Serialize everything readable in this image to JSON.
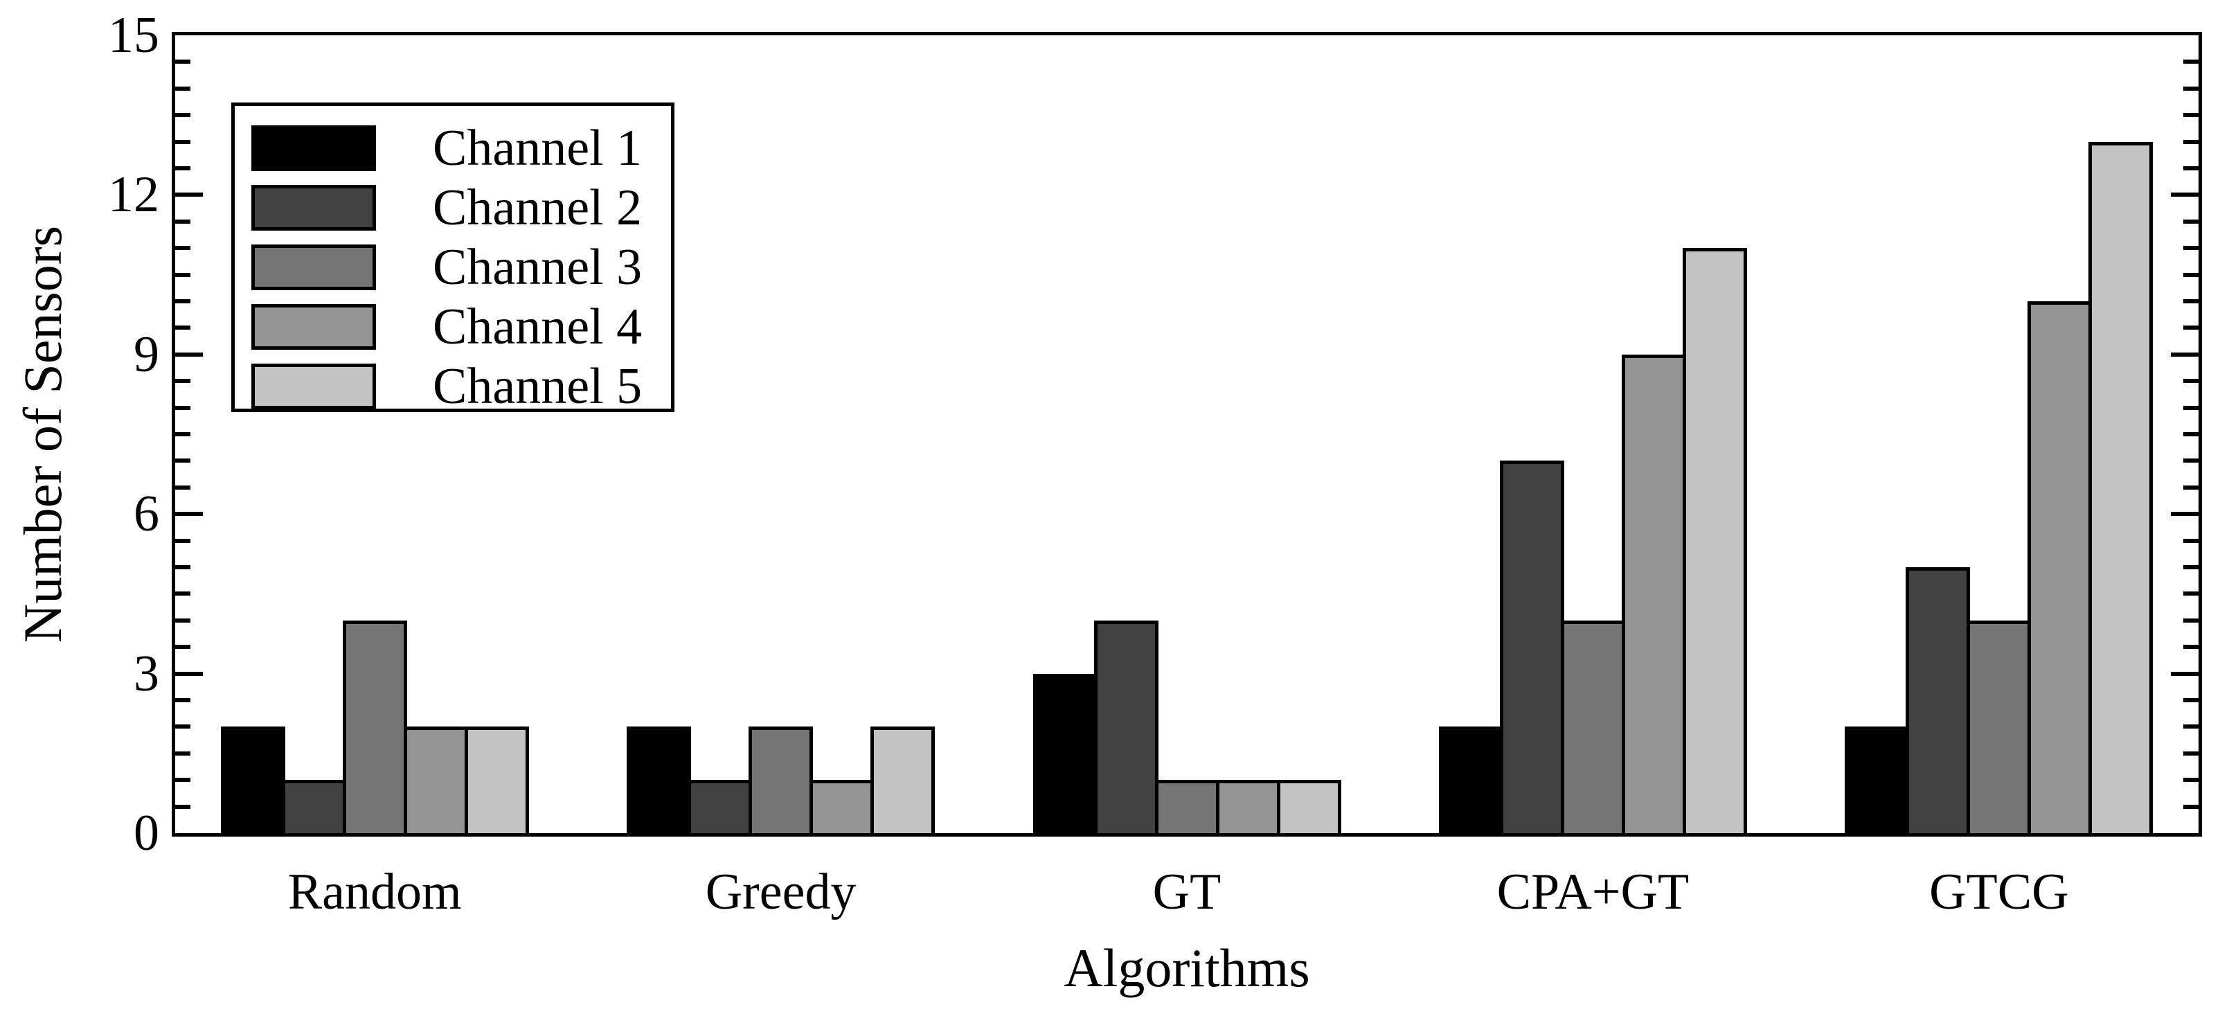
{
  "chart_data": {
    "type": "bar",
    "title": "",
    "xlabel": "Algorithms",
    "ylabel": "Number of Sensors",
    "categories": [
      "Random",
      "Greedy",
      "GT",
      "CPA+GT",
      "GTCG"
    ],
    "series": [
      {
        "name": "Channel 1",
        "color": "#000000",
        "values": [
          2,
          2,
          3,
          2,
          2
        ]
      },
      {
        "name": "Channel 2",
        "color": "#414141",
        "values": [
          1,
          1,
          4,
          7,
          5
        ]
      },
      {
        "name": "Channel 3",
        "color": "#757575",
        "values": [
          4,
          2,
          1,
          4,
          4
        ]
      },
      {
        "name": "Channel 4",
        "color": "#949494",
        "values": [
          2,
          1,
          1,
          9,
          10
        ]
      },
      {
        "name": "Channel 5",
        "color": "#c3c3c3",
        "values": [
          2,
          2,
          1,
          11,
          13
        ]
      }
    ],
    "ylim": [
      0,
      15
    ],
    "yticks": [
      0,
      3,
      6,
      9,
      12,
      15
    ],
    "ytick_labels": [
      "0",
      "3",
      "6",
      "9",
      "12",
      "15"
    ],
    "minor_tick_step": 0.5,
    "grid": false,
    "legend_position": "top-left",
    "legend_entries": [
      "Channel 1",
      "Channel 2",
      "Channel 3",
      "Channel 4",
      "Channel 5"
    ],
    "bar_outline_color": "#000000",
    "frame_color": "#000000",
    "background_color": "#ffffff"
  }
}
